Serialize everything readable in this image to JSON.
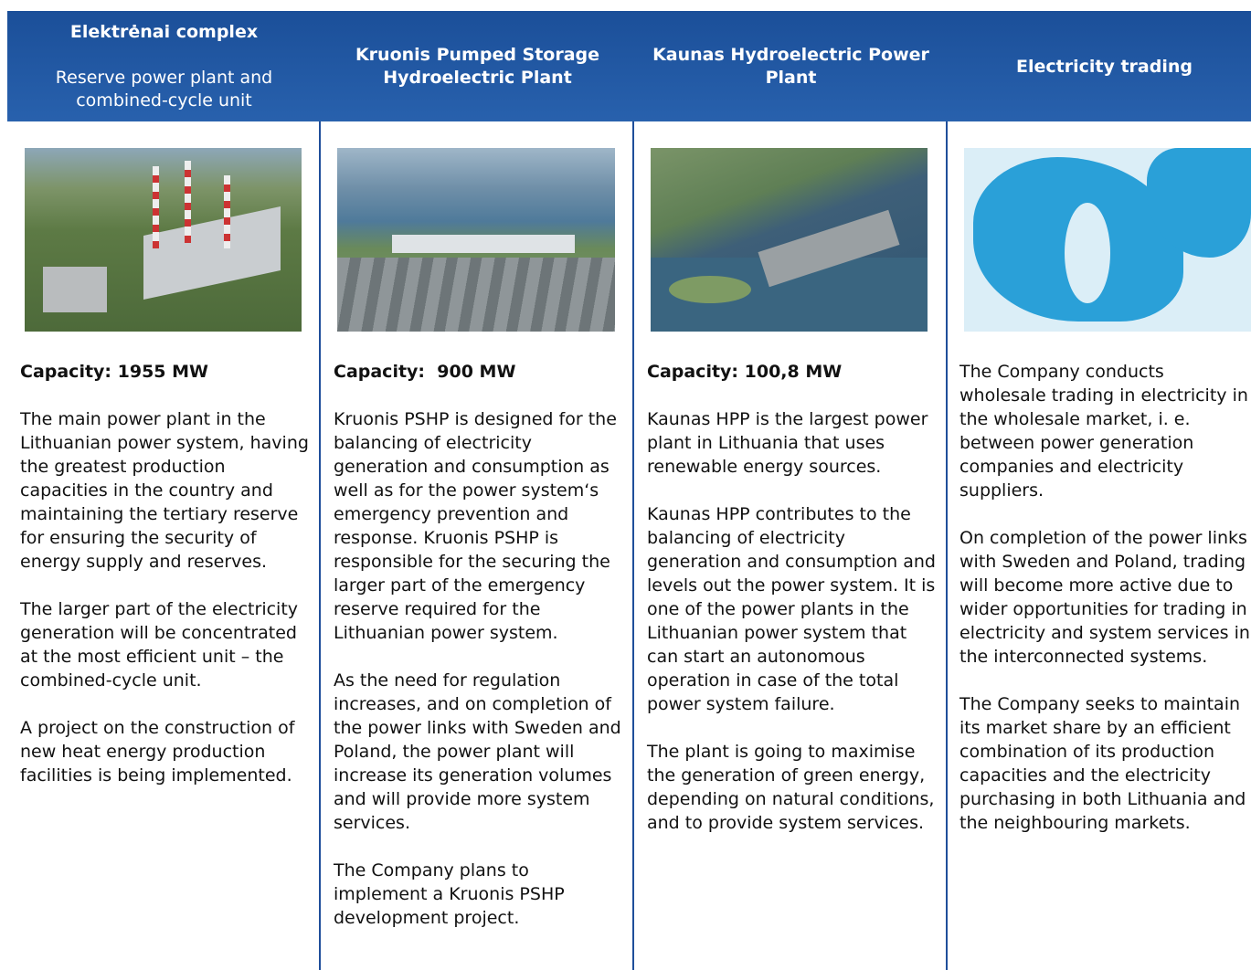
{
  "columns": [
    {
      "title": "Elektrėnai complex",
      "subtitle": "Reserve power plant and combined-cycle unit",
      "capacity": "Capacity: 1955 MW",
      "paragraphs": [
        "The main power plant in the Lithuanian power system, having the greatest production capacities in the country and maintaining the tertiary reserve for ensuring the security of energy supply and reserves.",
        "The larger part of the electricity generation will be concentrated at the most efficient unit – the combined-cycle unit.",
        "A project on the construction of new heat energy production facilities is being implemented."
      ]
    },
    {
      "title": "Kruonis Pumped Storage Hydroelectric Plant",
      "capacity": "Capacity:  900 MW",
      "paragraphs": [
        "Kruonis PSHP is designed for the balancing of electricity generation and consumption as well as for the power system‘s emergency prevention and response. Kruonis PSHP is responsible for the securing the larger part of the emergency reserve required for the Lithuanian power system.",
        "As the need for regulation increases, and on completion of the power links with Sweden and Poland, the power plant will increase its generation volumes and will provide more system services.",
        "The Company plans to implement a Kruonis PSHP development project."
      ]
    },
    {
      "title": "Kaunas Hydroelectric Power Plant",
      "capacity": "Capacity: 100,8 MW",
      "paragraphs": [
        "Kaunas HPP is the largest power plant in Lithuania that uses renewable energy sources.",
        "Kaunas HPP contributes to the balancing of electricity generation and consumption and levels out the power system. It is one of the power plants in the Lithuanian power system that can start an autonomous operation in case of the total power system failure.",
        "The plant is going to maximise the generation of green energy, depending on natural conditions, and to provide system services."
      ]
    },
    {
      "title": "Electricity trading",
      "paragraphs": [
        "The Company conducts wholesale trading in electricity in the wholesale market, i. e. between power generation companies and electricity suppliers.",
        "On completion of the power links with Sweden and Poland, trading will become more active due to wider opportunities for trading in electricity and system services in the interconnected systems.",
        "The Company seeks to maintain its market share by an efficient combination of its production capacities and the electricity purchasing in both Lithuania and the neighbouring markets."
      ]
    }
  ]
}
